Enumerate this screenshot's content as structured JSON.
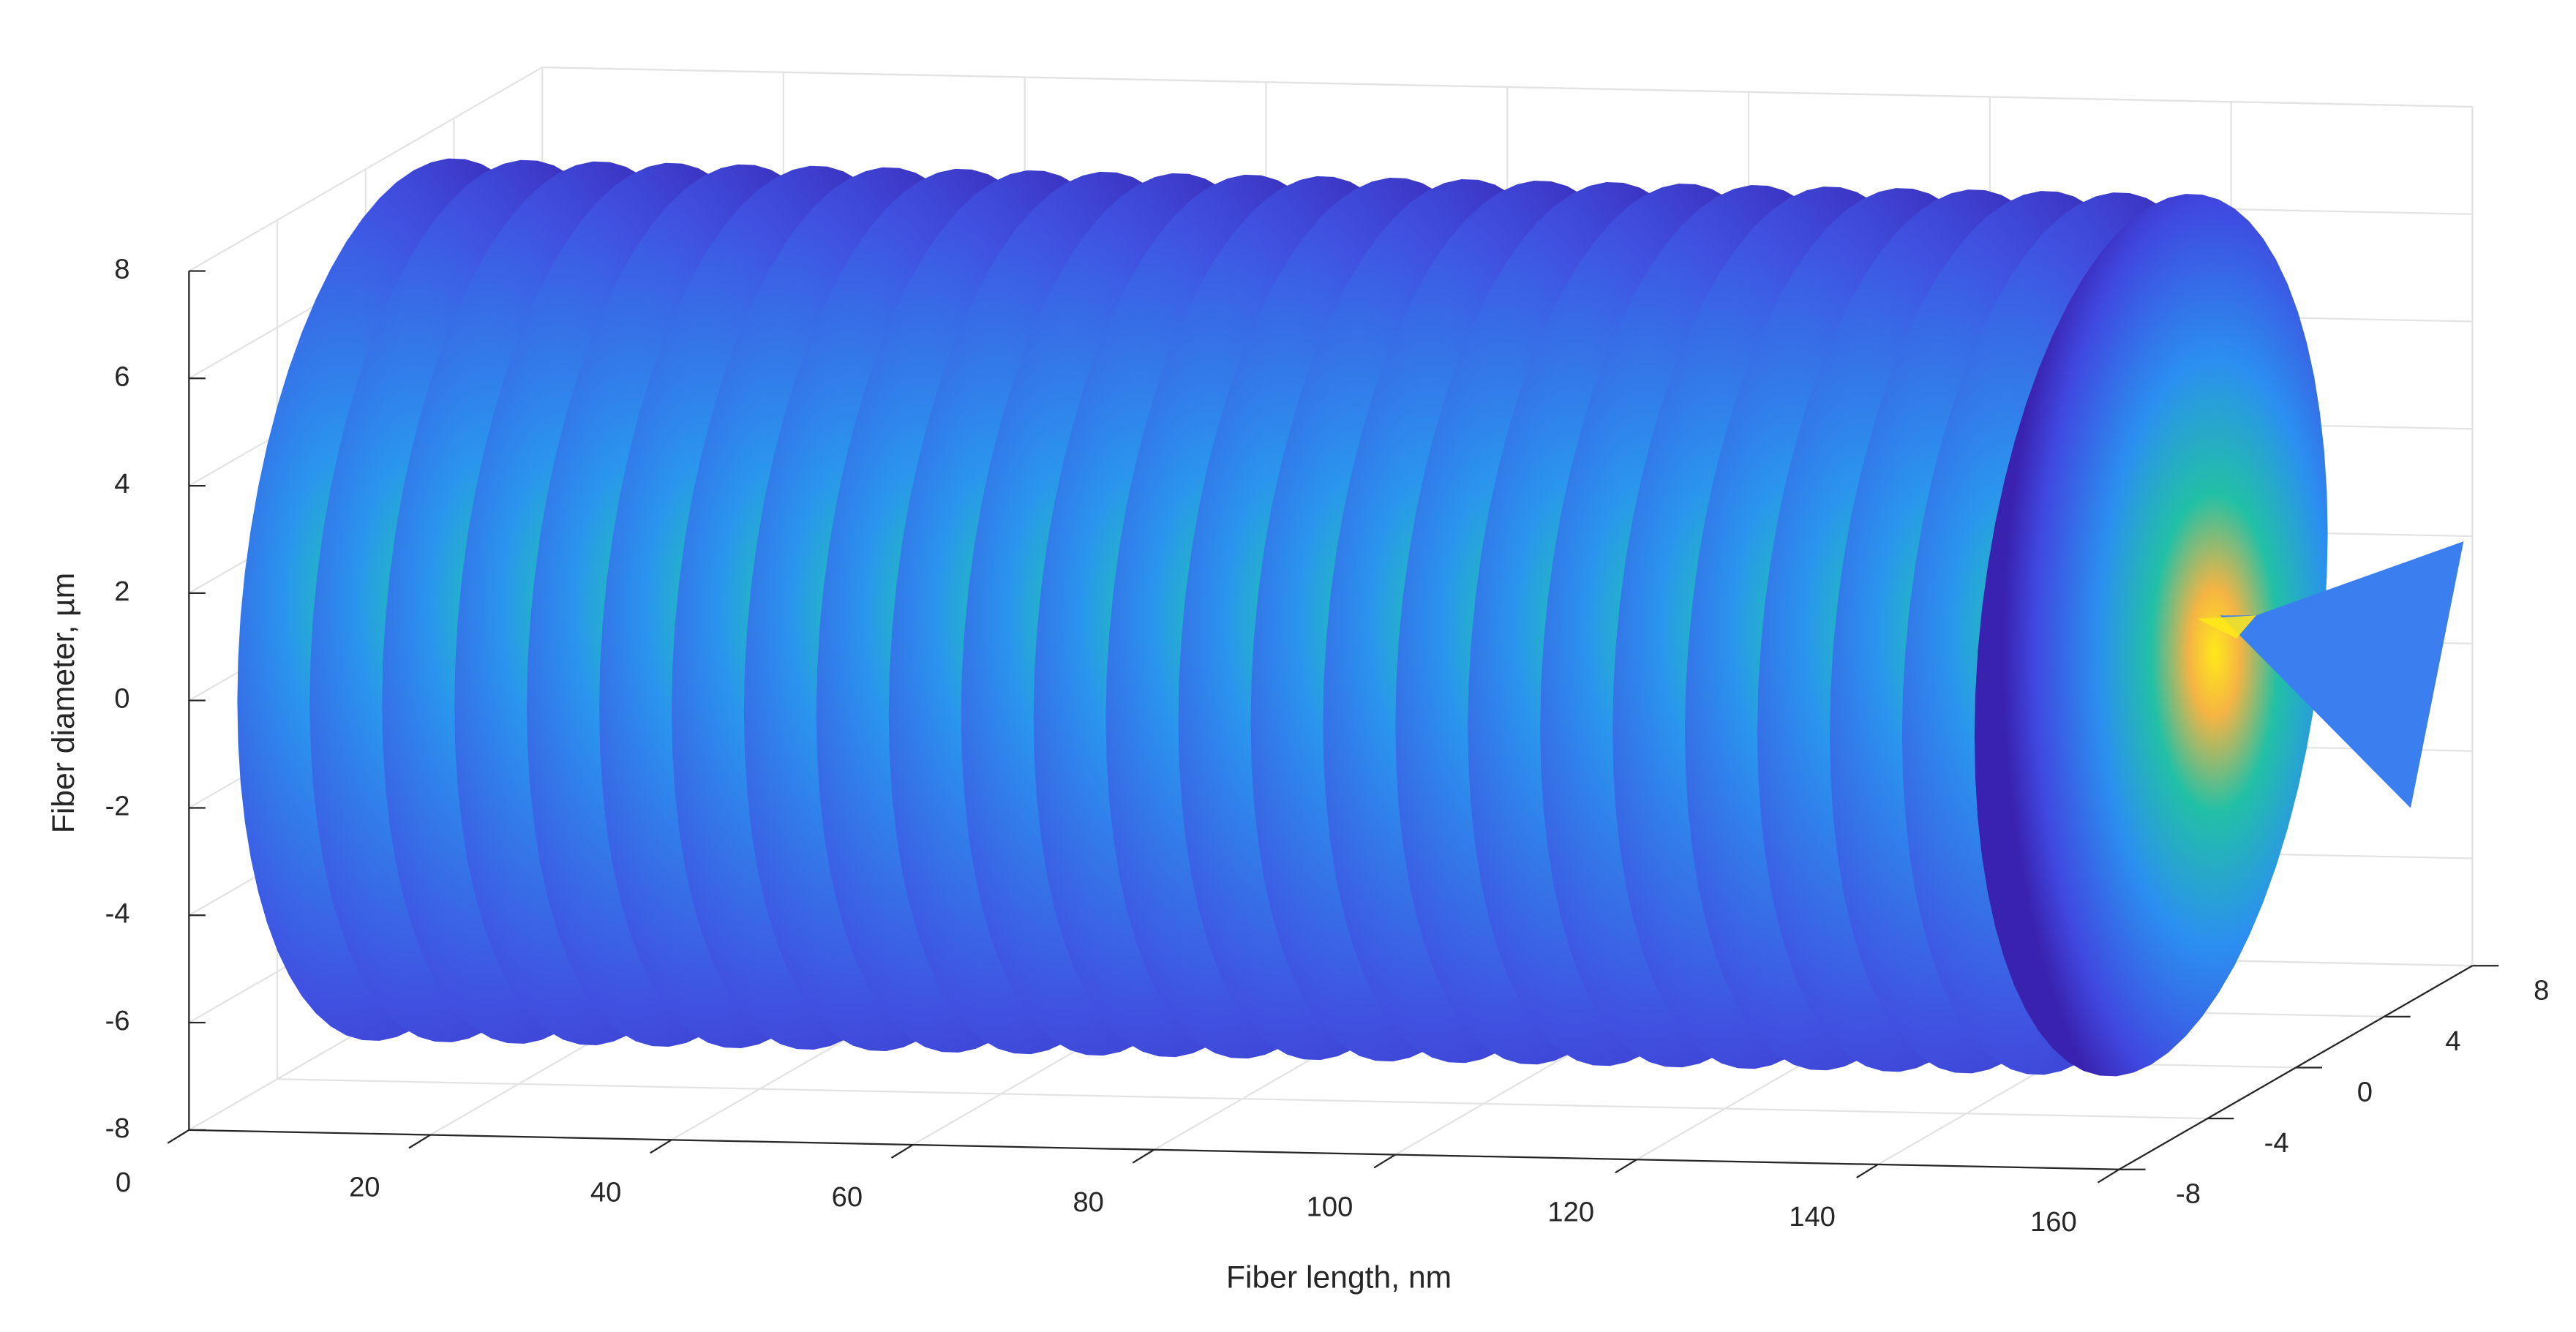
{
  "chart_data": {
    "type": "surface3d",
    "xlabel": "Fiber length, nm",
    "zlabel": "Fiber diameter, µm",
    "x": [
      4,
      10,
      16,
      22,
      28,
      34,
      40,
      46,
      52,
      58,
      64,
      70,
      76,
      82,
      88,
      94,
      100,
      106,
      112,
      118,
      124,
      130,
      136,
      142,
      148
    ],
    "radius": 8,
    "xlim": [
      0,
      160
    ],
    "xticks": [
      0,
      20,
      40,
      60,
      80,
      100,
      120,
      140,
      160
    ],
    "ylim": [
      -8,
      8
    ],
    "yticks": [
      -8,
      -4,
      0,
      4,
      8
    ],
    "zlim": [
      -8,
      8
    ],
    "zticks": [
      -8,
      -6,
      -4,
      -2,
      0,
      2,
      4,
      6,
      8
    ],
    "grid": true
  }
}
